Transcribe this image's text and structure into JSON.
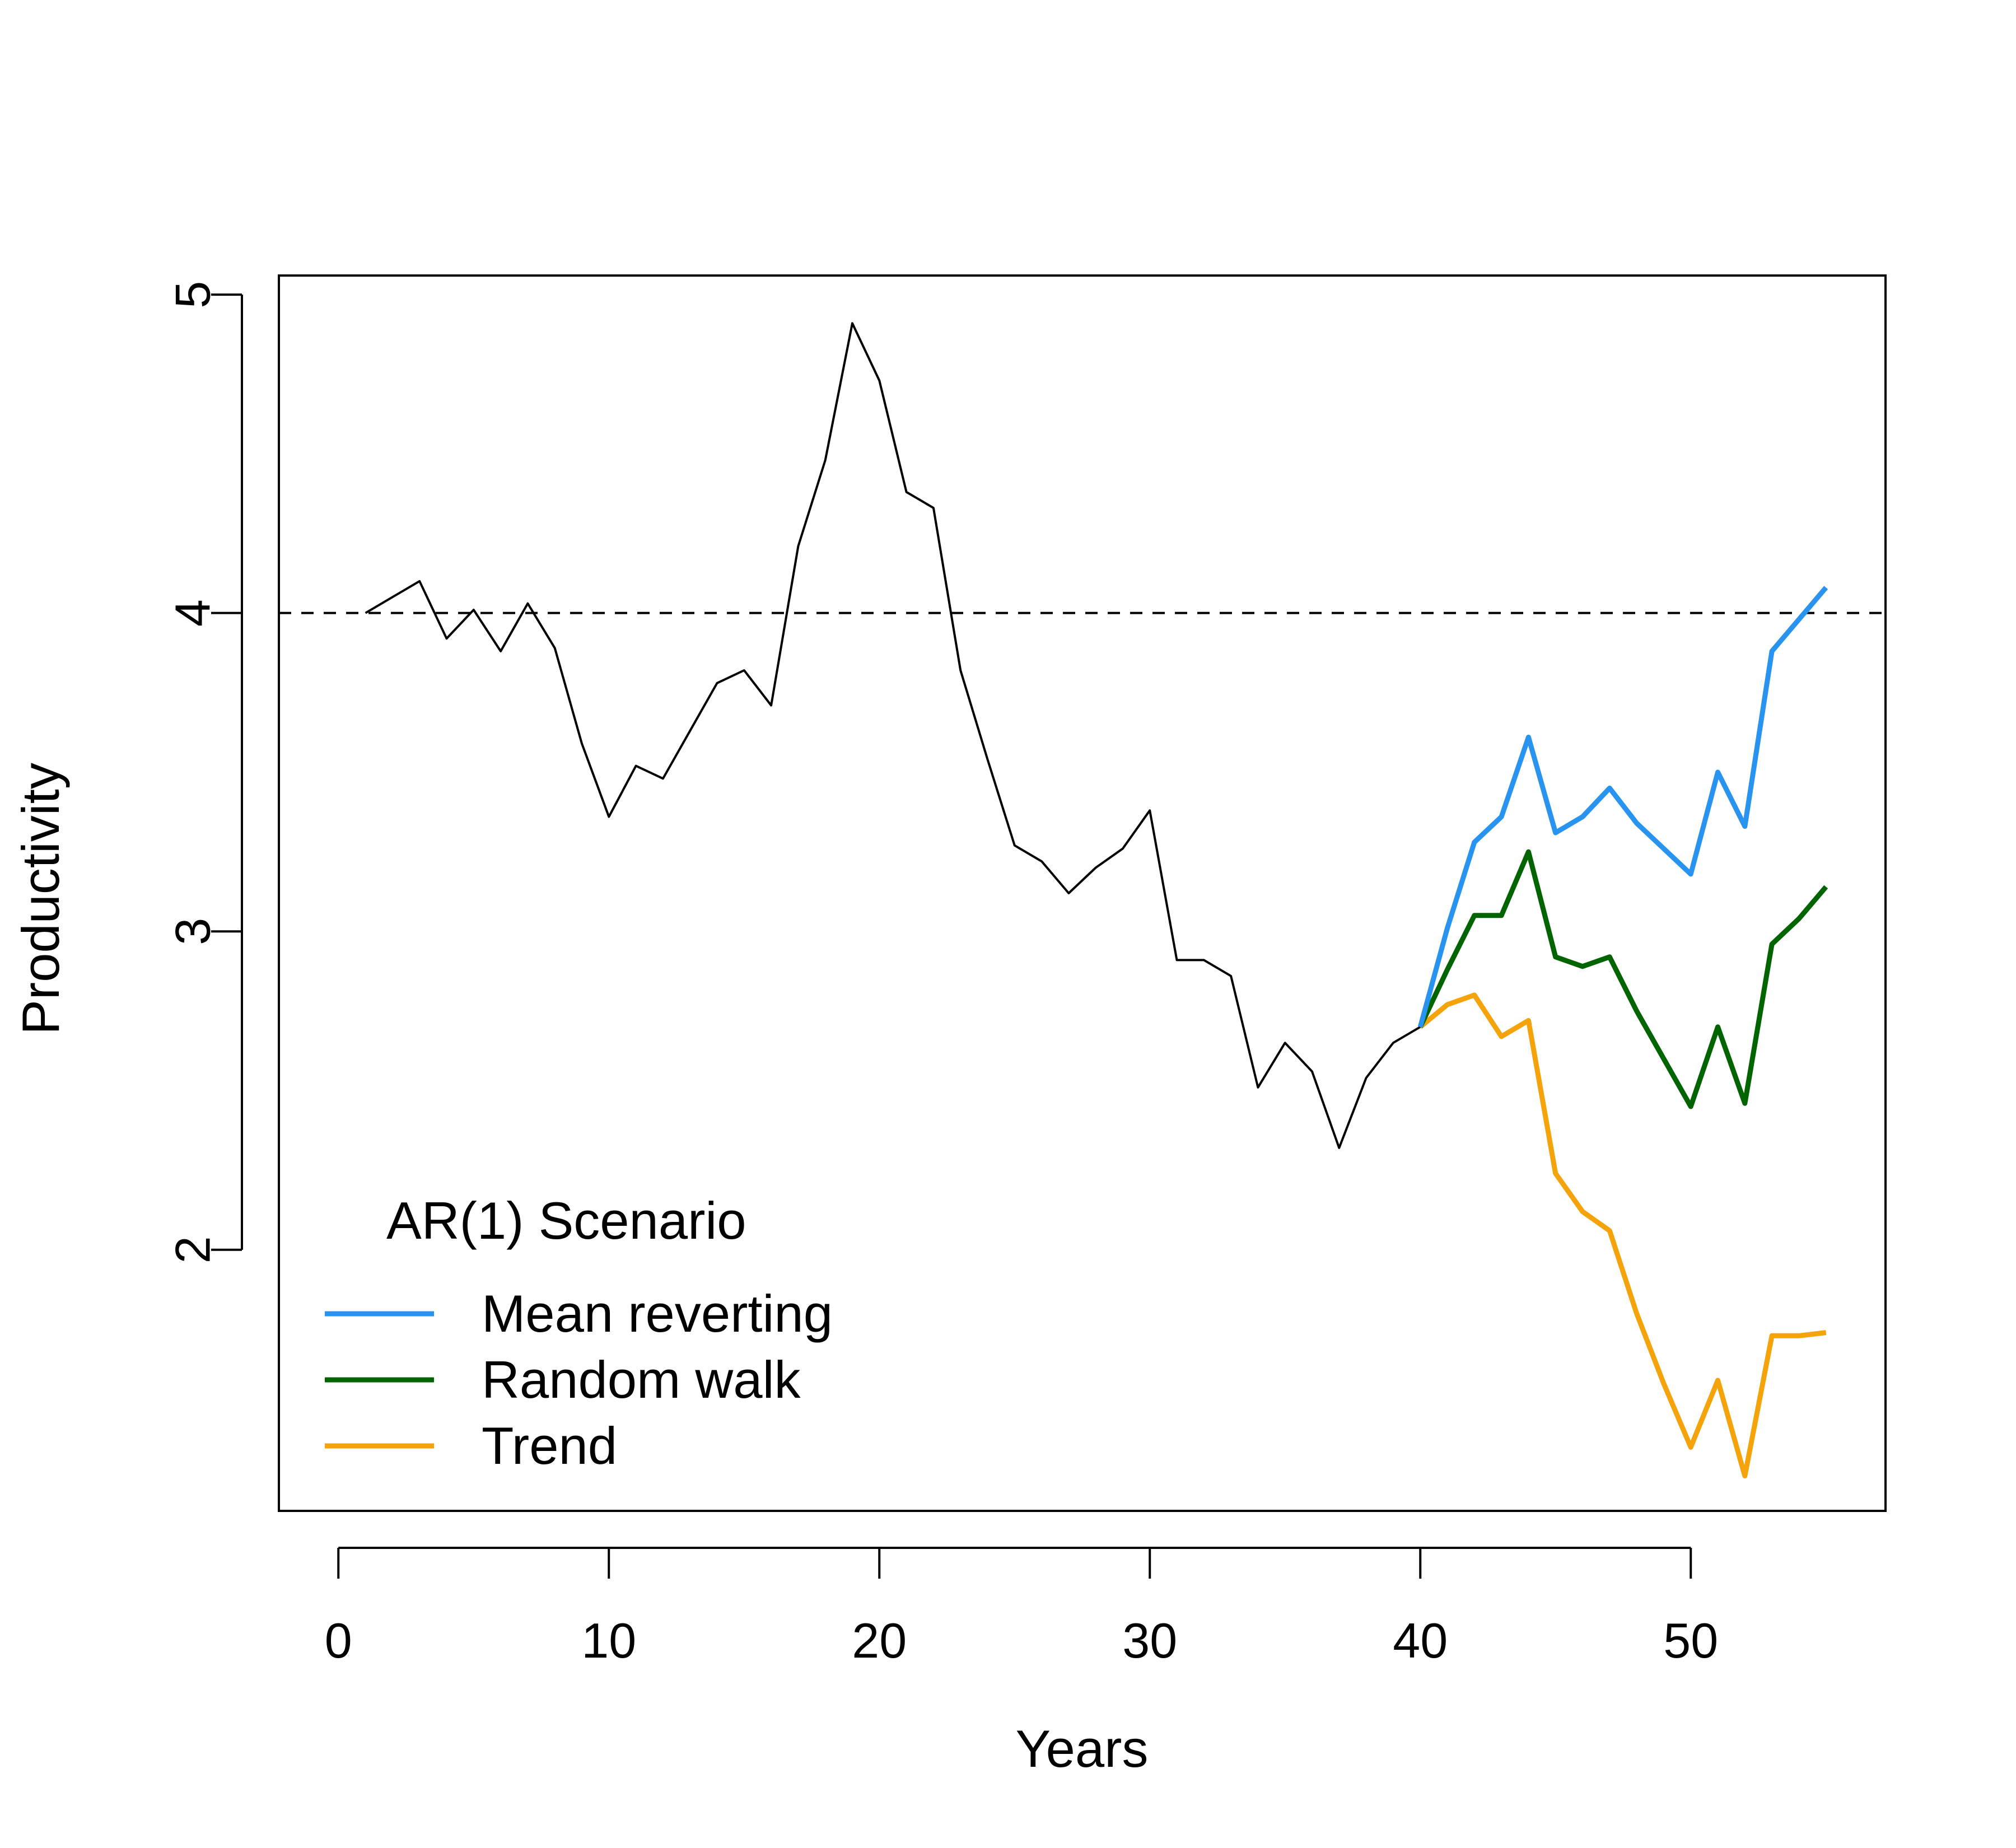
{
  "chart_data": {
    "type": "line",
    "xlabel": "Years",
    "ylabel": "Productivity",
    "xlim": [
      -2.2,
      57.2
    ],
    "ylim": [
      1.18,
      5.06
    ],
    "xticks": [
      0,
      10,
      20,
      30,
      40,
      50
    ],
    "yticks": [
      2,
      3,
      4,
      5
    ],
    "reference_line": {
      "y": 4,
      "style": "dashed",
      "color": "#000000"
    },
    "history": {
      "color": "#000000",
      "x": [
        1,
        2,
        3,
        4,
        5,
        6,
        7,
        8,
        9,
        10,
        11,
        12,
        13,
        14,
        15,
        16,
        17,
        18,
        19,
        20,
        21,
        22,
        23,
        24,
        25,
        26,
        27,
        28,
        29,
        30,
        31,
        32,
        33,
        34,
        35,
        36,
        37,
        38,
        39,
        40
      ],
      "y": [
        4.0,
        4.05,
        4.1,
        3.92,
        4.01,
        3.88,
        4.03,
        3.89,
        3.59,
        3.36,
        3.52,
        3.48,
        3.63,
        3.78,
        3.82,
        3.71,
        4.21,
        4.48,
        4.91,
        4.73,
        4.38,
        4.33,
        3.82,
        3.54,
        3.27,
        3.22,
        3.12,
        3.2,
        3.26,
        3.38,
        2.91,
        2.91,
        2.86,
        2.51,
        2.65,
        2.56,
        2.32,
        2.54,
        2.65,
        2.7
      ]
    },
    "legend": {
      "title": "AR(1) Scenario",
      "position": "bottom-left"
    },
    "series": [
      {
        "name": "Mean reverting",
        "color": "#2894f0",
        "x": [
          40,
          41,
          42,
          43,
          44,
          45,
          46,
          47,
          48,
          49,
          50,
          51,
          52,
          53,
          54,
          55
        ],
        "y": [
          2.7,
          3.01,
          3.28,
          3.36,
          3.61,
          3.31,
          3.36,
          3.45,
          3.34,
          3.26,
          3.18,
          3.5,
          3.33,
          3.88,
          3.98,
          4.08
        ]
      },
      {
        "name": "Random walk",
        "color": "#006400",
        "x": [
          40,
          41,
          42,
          43,
          44,
          45,
          46,
          47,
          48,
          49,
          50,
          51,
          52,
          53,
          54,
          55
        ],
        "y": [
          2.7,
          2.88,
          3.05,
          3.05,
          3.25,
          2.92,
          2.89,
          2.92,
          2.75,
          2.6,
          2.45,
          2.7,
          2.46,
          2.96,
          3.04,
          3.14
        ]
      },
      {
        "name": "Trend",
        "color": "#f5a30a",
        "x": [
          40,
          41,
          42,
          43,
          44,
          45,
          46,
          47,
          48,
          49,
          50,
          51,
          52,
          53,
          54,
          55
        ],
        "y": [
          2.7,
          2.77,
          2.8,
          2.67,
          2.72,
          2.24,
          2.12,
          2.06,
          1.8,
          1.58,
          1.38,
          1.59,
          1.29,
          1.73,
          1.73,
          1.74
        ]
      }
    ]
  }
}
